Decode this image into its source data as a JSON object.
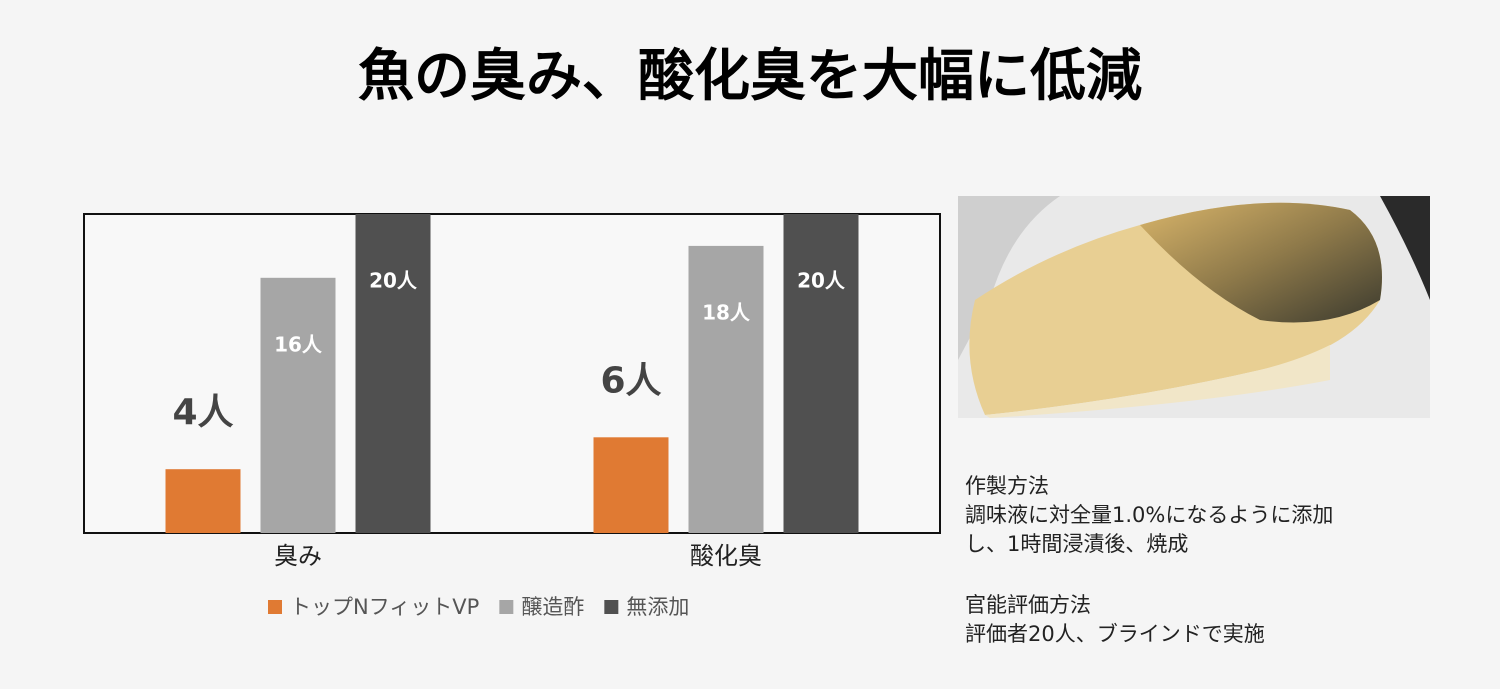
{
  "title": "魚の臭み、酸化臭を大幅に低減",
  "chart_data": {
    "type": "bar",
    "categories": [
      "臭み",
      "酸化臭"
    ],
    "series": [
      {
        "name": "トップNフィットVP",
        "color": "#e07a33",
        "values": [
          4,
          6
        ],
        "value_labels": [
          "4人",
          "6人"
        ]
      },
      {
        "name": "醸造酢",
        "color": "#a6a6a6",
        "values": [
          16,
          18
        ],
        "value_labels": [
          "16人",
          "18人"
        ]
      },
      {
        "name": "無添加",
        "color": "#505050",
        "values": [
          20,
          20
        ],
        "value_labels": [
          "20人",
          "20人"
        ]
      }
    ]
  },
  "notes": [
    {
      "heading": "作製方法",
      "text": "調味液に対全量1.0%になるように添加し、1時間浸漬後、焼成"
    },
    {
      "heading": "官能評価方法",
      "text": "評価者20人、ブラインドで実施"
    }
  ]
}
